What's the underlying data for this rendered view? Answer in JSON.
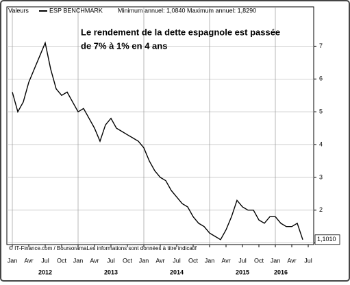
{
  "chart_data": {
    "type": "line",
    "header_label": "Valeurs",
    "subtitle": "Minimum annuel: 1,0840 Maximum annuel: 1,8290",
    "annotation": [
      "Le rendement de la dette espagnole est passée",
      "de 7% à 1% en 4 ans"
    ],
    "footer": "© IT-Finance.com / BoursoramaLes informations sont données à titre indicatif",
    "x": [
      "2012-01",
      "2012-02",
      "2012-03",
      "2012-04",
      "2012-05",
      "2012-06",
      "2012-07",
      "2012-08",
      "2012-09",
      "2012-10",
      "2012-11",
      "2012-12",
      "2013-01",
      "2013-02",
      "2013-03",
      "2013-04",
      "2013-05",
      "2013-06",
      "2013-07",
      "2013-08",
      "2013-09",
      "2013-10",
      "2013-11",
      "2013-12",
      "2014-01",
      "2014-02",
      "2014-03",
      "2014-04",
      "2014-05",
      "2014-06",
      "2014-07",
      "2014-08",
      "2014-09",
      "2014-10",
      "2014-11",
      "2014-12",
      "2015-01",
      "2015-02",
      "2015-03",
      "2015-04",
      "2015-05",
      "2015-06",
      "2015-07",
      "2015-08",
      "2015-09",
      "2015-10",
      "2015-11",
      "2015-12",
      "2016-01",
      "2016-02",
      "2016-03",
      "2016-04",
      "2016-05",
      "2016-06"
    ],
    "series": [
      {
        "name": "ESP BENCHMARK",
        "color": "#000000",
        "values": [
          5.6,
          5.0,
          5.3,
          5.9,
          6.3,
          6.7,
          7.1,
          6.3,
          5.7,
          5.5,
          5.6,
          5.3,
          5.0,
          5.1,
          4.8,
          4.5,
          4.1,
          4.6,
          4.8,
          4.5,
          4.4,
          4.3,
          4.2,
          4.1,
          3.9,
          3.5,
          3.2,
          3.0,
          2.9,
          2.6,
          2.4,
          2.2,
          2.1,
          1.8,
          1.6,
          1.5,
          1.3,
          1.2,
          1.1,
          1.4,
          1.8,
          2.3,
          2.1,
          2.0,
          2.0,
          1.7,
          1.6,
          1.8,
          1.8,
          1.6,
          1.5,
          1.5,
          1.6,
          1.101
        ],
        "value_labels": [
          null,
          null,
          null,
          null,
          null,
          null,
          null,
          null,
          null,
          null,
          null,
          null,
          null,
          null,
          null,
          null,
          null,
          null,
          null,
          null,
          null,
          null,
          null,
          null,
          null,
          null,
          null,
          null,
          null,
          null,
          null,
          null,
          null,
          null,
          null,
          null,
          null,
          null,
          null,
          null,
          null,
          null,
          null,
          null,
          null,
          null,
          null,
          null,
          null,
          null,
          null,
          null,
          null,
          "1,1010"
        ]
      }
    ],
    "xlim": [
      "2011-12",
      "2016-08"
    ],
    "xticks": [
      {
        "value": "2012-01",
        "label": "Jan"
      },
      {
        "value": "2012-04",
        "label": "Avr"
      },
      {
        "value": "2012-07",
        "label": "Jul"
      },
      {
        "value": "2012-10",
        "label": "Oct"
      },
      {
        "value": "2013-01",
        "label": "Jan"
      },
      {
        "value": "2013-04",
        "label": "Avr"
      },
      {
        "value": "2013-07",
        "label": "Jul"
      },
      {
        "value": "2013-10",
        "label": "Oct"
      },
      {
        "value": "2014-01",
        "label": "Jan"
      },
      {
        "value": "2014-04",
        "label": "Avr"
      },
      {
        "value": "2014-07",
        "label": "Jul"
      },
      {
        "value": "2014-10",
        "label": "Oct"
      },
      {
        "value": "2015-01",
        "label": "Jan"
      },
      {
        "value": "2015-04",
        "label": "Avr"
      },
      {
        "value": "2015-07",
        "label": "Jul"
      },
      {
        "value": "2015-10",
        "label": "Oct"
      },
      {
        "value": "2016-01",
        "label": "Jan"
      },
      {
        "value": "2016-04",
        "label": "Avr"
      },
      {
        "value": "2016-07",
        "label": "Jul"
      }
    ],
    "year_ticks": [
      {
        "value": "2012-07",
        "label": "2012"
      },
      {
        "value": "2013-07",
        "label": "2013"
      },
      {
        "value": "2014-07",
        "label": "2014"
      },
      {
        "value": "2015-07",
        "label": "2015"
      },
      {
        "value": "2016-02",
        "label": "2016"
      }
    ],
    "ylim": [
      0.95,
      8.2
    ],
    "yticks": [
      1,
      2,
      3,
      4,
      5,
      6,
      7
    ],
    "grid": true
  }
}
